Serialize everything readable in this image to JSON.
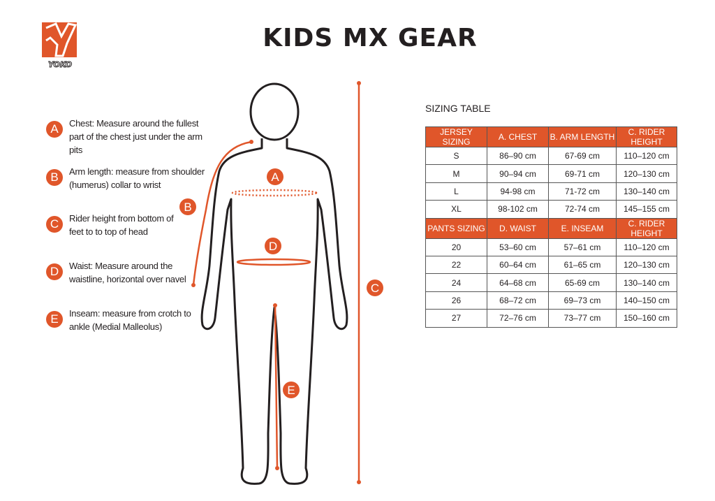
{
  "header": {
    "title": "KIDS MX GEAR",
    "logo_text": "YOKO"
  },
  "colors": {
    "accent": "#e0562a",
    "text": "#231f20"
  },
  "legend": [
    {
      "letter": "A",
      "text": "Chest: Measure around  the fullest part of the chest just under the arm pits"
    },
    {
      "letter": "B",
      "text": "Arm length: measure from shoulder (humerus) collar to wrist"
    },
    {
      "letter": "C",
      "text": "Rider height from bottom of feet to to top of head"
    },
    {
      "letter": "D",
      "text": "Waist: Measure around the waistline, horizontal over navel"
    },
    {
      "letter": "E",
      "text": "Inseam: measure from crotch to ankle (Medial Malleolus)"
    }
  ],
  "figure_markers": {
    "a": "A",
    "b": "B",
    "c": "C",
    "d": "D",
    "e": "E"
  },
  "sizing": {
    "caption": "SIZING TABLE",
    "jersey_headers": [
      "JERSEY SIZING",
      "A. CHEST",
      "B. ARM LENGTH",
      "C. RIDER HEIGHT"
    ],
    "jersey_rows": [
      [
        "S",
        "86–90 cm",
        "67-69 cm",
        "110–120 cm"
      ],
      [
        "M",
        "90–94 cm",
        "69-71 cm",
        "120–130 cm"
      ],
      [
        "L",
        "94-98 cm",
        "71-72 cm",
        "130–140 cm"
      ],
      [
        "XL",
        "98-102 cm",
        "72-74 cm",
        "145–155 cm"
      ]
    ],
    "pants_headers": [
      "PANTS SIZING",
      "D. WAIST",
      "E. INSEAM",
      "C. RIDER HEIGHT"
    ],
    "pants_rows": [
      [
        "20",
        "53–60 cm",
        "57–61 cm",
        "110–120 cm"
      ],
      [
        "22",
        "60–64 cm",
        "61–65 cm",
        "120–130 cm"
      ],
      [
        "24",
        "64–68 cm",
        "65-69 cm",
        "130–140 cm"
      ],
      [
        "26",
        "68–72 cm",
        "69–73 cm",
        "140–150 cm"
      ],
      [
        "27",
        "72–76 cm",
        "73–77 cm",
        "150–160 cm"
      ]
    ]
  }
}
